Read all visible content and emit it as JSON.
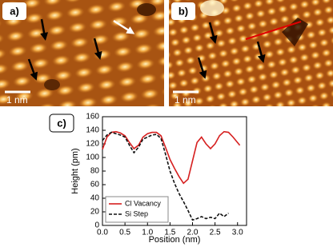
{
  "figure": {
    "labels": [
      "a)",
      "b)",
      "c)"
    ],
    "scale_bars": [
      "1 nm",
      "1 nm"
    ]
  },
  "chart_data": {
    "type": "line",
    "x_label": "Position (nm)",
    "y_label": "Height (pm)",
    "xlim": [
      0,
      3.2
    ],
    "ylim": [
      0,
      160
    ],
    "xticks": [
      {
        "value": 0,
        "label": "0.0"
      },
      0.5,
      {
        "value": 1,
        "label": "1.0"
      },
      1.5,
      {
        "value": 2,
        "label": "2.0"
      },
      2.5,
      {
        "value": 3,
        "label": "3.0"
      }
    ],
    "yticks": [
      0,
      20,
      40,
      60,
      80,
      100,
      120,
      140,
      160
    ],
    "legend": "lower left",
    "series": [
      {
        "name": "Cl Vacancy",
        "color": "#d62020",
        "dash": false,
        "x": [
          0,
          0.1,
          0.2,
          0.3,
          0.4,
          0.5,
          0.6,
          0.7,
          0.8,
          0.9,
          1.0,
          1.1,
          1.2,
          1.3,
          1.4,
          1.5,
          1.6,
          1.7,
          1.8,
          1.9,
          2.0,
          2.1,
          2.2,
          2.3,
          2.4,
          2.5,
          2.6,
          2.7,
          2.8,
          2.9,
          3.05
        ],
        "values": [
          112,
          130,
          137,
          138,
          136,
          132,
          122,
          113,
          118,
          130,
          135,
          137,
          137,
          132,
          115,
          97,
          84,
          72,
          62,
          68,
          95,
          122,
          130,
          120,
          113,
          120,
          132,
          138,
          137,
          130,
          118
        ]
      },
      {
        "name": "Si Step",
        "color": "#111111",
        "dash": true,
        "x": [
          0,
          0.1,
          0.2,
          0.3,
          0.4,
          0.5,
          0.6,
          0.7,
          0.8,
          0.9,
          1.0,
          1.1,
          1.2,
          1.3,
          1.4,
          1.5,
          1.6,
          1.7,
          1.8,
          1.9,
          2.0,
          2.1,
          2.2,
          2.3,
          2.4,
          2.5,
          2.6,
          2.7,
          2.8
        ],
        "values": [
          125,
          133,
          137,
          135,
          133,
          130,
          118,
          107,
          115,
          127,
          130,
          133,
          134,
          128,
          105,
          80,
          62,
          47,
          35,
          22,
          8,
          10,
          13,
          10,
          12,
          10,
          18,
          13,
          18
        ]
      }
    ]
  }
}
